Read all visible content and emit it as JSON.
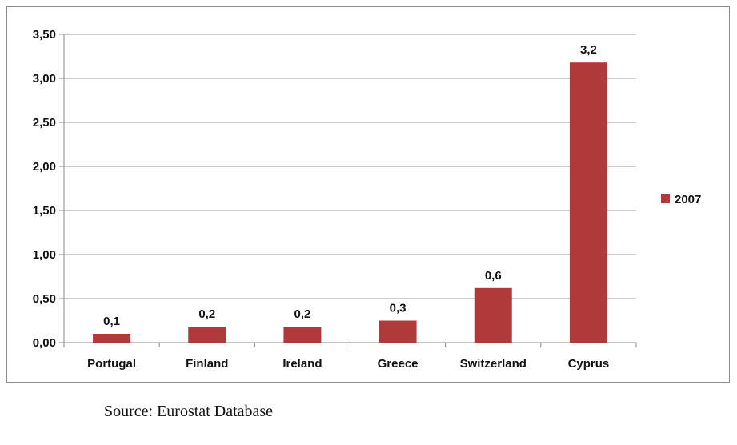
{
  "chart_data": {
    "type": "bar",
    "categories": [
      "Portugal",
      "Finland",
      "Ireland",
      "Greece",
      "Switzerland",
      "Cyprus"
    ],
    "series": [
      {
        "name": "2007",
        "values": [
          0.1,
          0.18,
          0.18,
          0.25,
          0.62,
          3.18
        ],
        "data_labels": [
          "0,1",
          "0,2",
          "0,2",
          "0,3",
          "0,6",
          "3,2"
        ],
        "color": "#b03a3a"
      }
    ],
    "yticks": [
      "0,00",
      "0,50",
      "1,00",
      "1,50",
      "2,00",
      "2,50",
      "3,00",
      "3,50"
    ],
    "ylim": [
      0,
      3.5
    ],
    "grid": true,
    "legend_position": "right",
    "title": "",
    "xlabel": "",
    "ylabel": ""
  },
  "source_note": "Source: Eurostat Database"
}
